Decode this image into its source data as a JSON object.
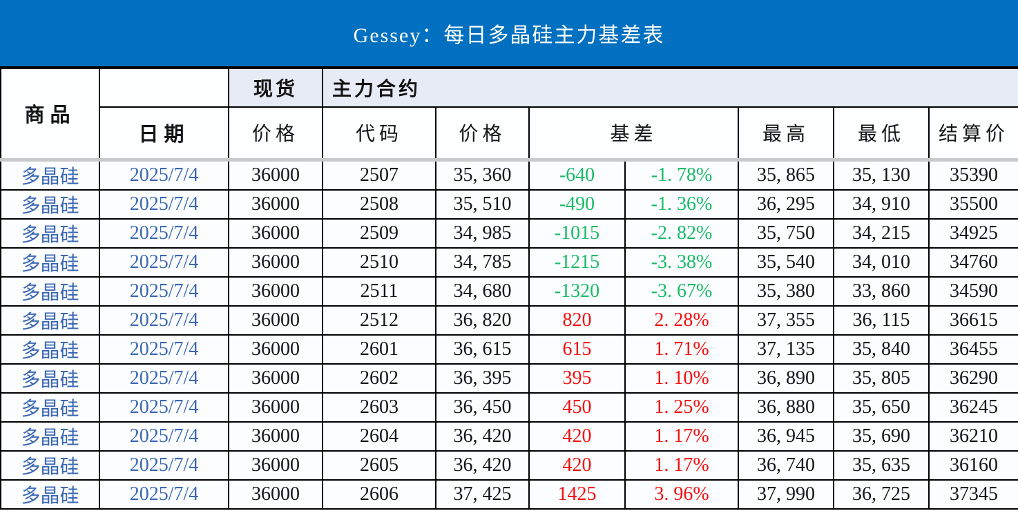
{
  "title": "Gessey：每日多晶硅主力基差表",
  "colors": {
    "banner_blue": "#0170c0",
    "group_band_lavender": "#e7ebf5",
    "commodity_date_blue": "#3a67b2",
    "basis_negative_green": "#17bb66",
    "basis_positive_red": "#f80d0d",
    "header_divider_gray": "#c9c9c9"
  },
  "header": {
    "commodity": "商品",
    "date": "日期",
    "spot_group": "现货",
    "main_contract_group": "主力合约",
    "spot_price": "价格",
    "code": "代码",
    "price": "价格",
    "basis": "基差",
    "high": "最高",
    "low": "最低",
    "settlement": "结算价"
  },
  "rows": [
    {
      "commodity": "多晶硅",
      "date": "2025/7/4",
      "spot_price": "36000",
      "code": "2507",
      "price": "35, 360",
      "basis": "-640",
      "basis_pct": "-1. 78%",
      "high": "35, 865",
      "low": "35, 130",
      "settle": "35390"
    },
    {
      "commodity": "多晶硅",
      "date": "2025/7/4",
      "spot_price": "36000",
      "code": "2508",
      "price": "35, 510",
      "basis": "-490",
      "basis_pct": "-1. 36%",
      "high": "36, 295",
      "low": "34, 910",
      "settle": "35500"
    },
    {
      "commodity": "多晶硅",
      "date": "2025/7/4",
      "spot_price": "36000",
      "code": "2509",
      "price": "34, 985",
      "basis": "-1015",
      "basis_pct": "-2. 82%",
      "high": "35, 750",
      "low": "34, 215",
      "settle": "34925"
    },
    {
      "commodity": "多晶硅",
      "date": "2025/7/4",
      "spot_price": "36000",
      "code": "2510",
      "price": "34, 785",
      "basis": "-1215",
      "basis_pct": "-3. 38%",
      "high": "35, 540",
      "low": "34, 010",
      "settle": "34760"
    },
    {
      "commodity": "多晶硅",
      "date": "2025/7/4",
      "spot_price": "36000",
      "code": "2511",
      "price": "34, 680",
      "basis": "-1320",
      "basis_pct": "-3. 67%",
      "high": "35, 380",
      "low": "33, 860",
      "settle": "34590"
    },
    {
      "commodity": "多晶硅",
      "date": "2025/7/4",
      "spot_price": "36000",
      "code": "2512",
      "price": "36, 820",
      "basis": "820",
      "basis_pct": "2. 28%",
      "high": "37, 355",
      "low": "36, 115",
      "settle": "36615"
    },
    {
      "commodity": "多晶硅",
      "date": "2025/7/4",
      "spot_price": "36000",
      "code": "2601",
      "price": "36, 615",
      "basis": "615",
      "basis_pct": "1. 71%",
      "high": "37, 135",
      "low": "35, 840",
      "settle": "36455"
    },
    {
      "commodity": "多晶硅",
      "date": "2025/7/4",
      "spot_price": "36000",
      "code": "2602",
      "price": "36, 395",
      "basis": "395",
      "basis_pct": "1. 10%",
      "high": "36, 890",
      "low": "35, 805",
      "settle": "36290"
    },
    {
      "commodity": "多晶硅",
      "date": "2025/7/4",
      "spot_price": "36000",
      "code": "2603",
      "price": "36, 450",
      "basis": "450",
      "basis_pct": "1. 25%",
      "high": "36, 880",
      "low": "35, 650",
      "settle": "36245"
    },
    {
      "commodity": "多晶硅",
      "date": "2025/7/4",
      "spot_price": "36000",
      "code": "2604",
      "price": "36, 420",
      "basis": "420",
      "basis_pct": "1. 17%",
      "high": "36, 945",
      "low": "35, 690",
      "settle": "36210"
    },
    {
      "commodity": "多晶硅",
      "date": "2025/7/4",
      "spot_price": "36000",
      "code": "2605",
      "price": "36, 420",
      "basis": "420",
      "basis_pct": "1. 17%",
      "high": "36, 740",
      "low": "35, 635",
      "settle": "36160"
    },
    {
      "commodity": "多晶硅",
      "date": "2025/7/4",
      "spot_price": "36000",
      "code": "2606",
      "price": "37, 425",
      "basis": "1425",
      "basis_pct": "3. 96%",
      "high": "37, 990",
      "low": "36, 725",
      "settle": "37345"
    }
  ]
}
